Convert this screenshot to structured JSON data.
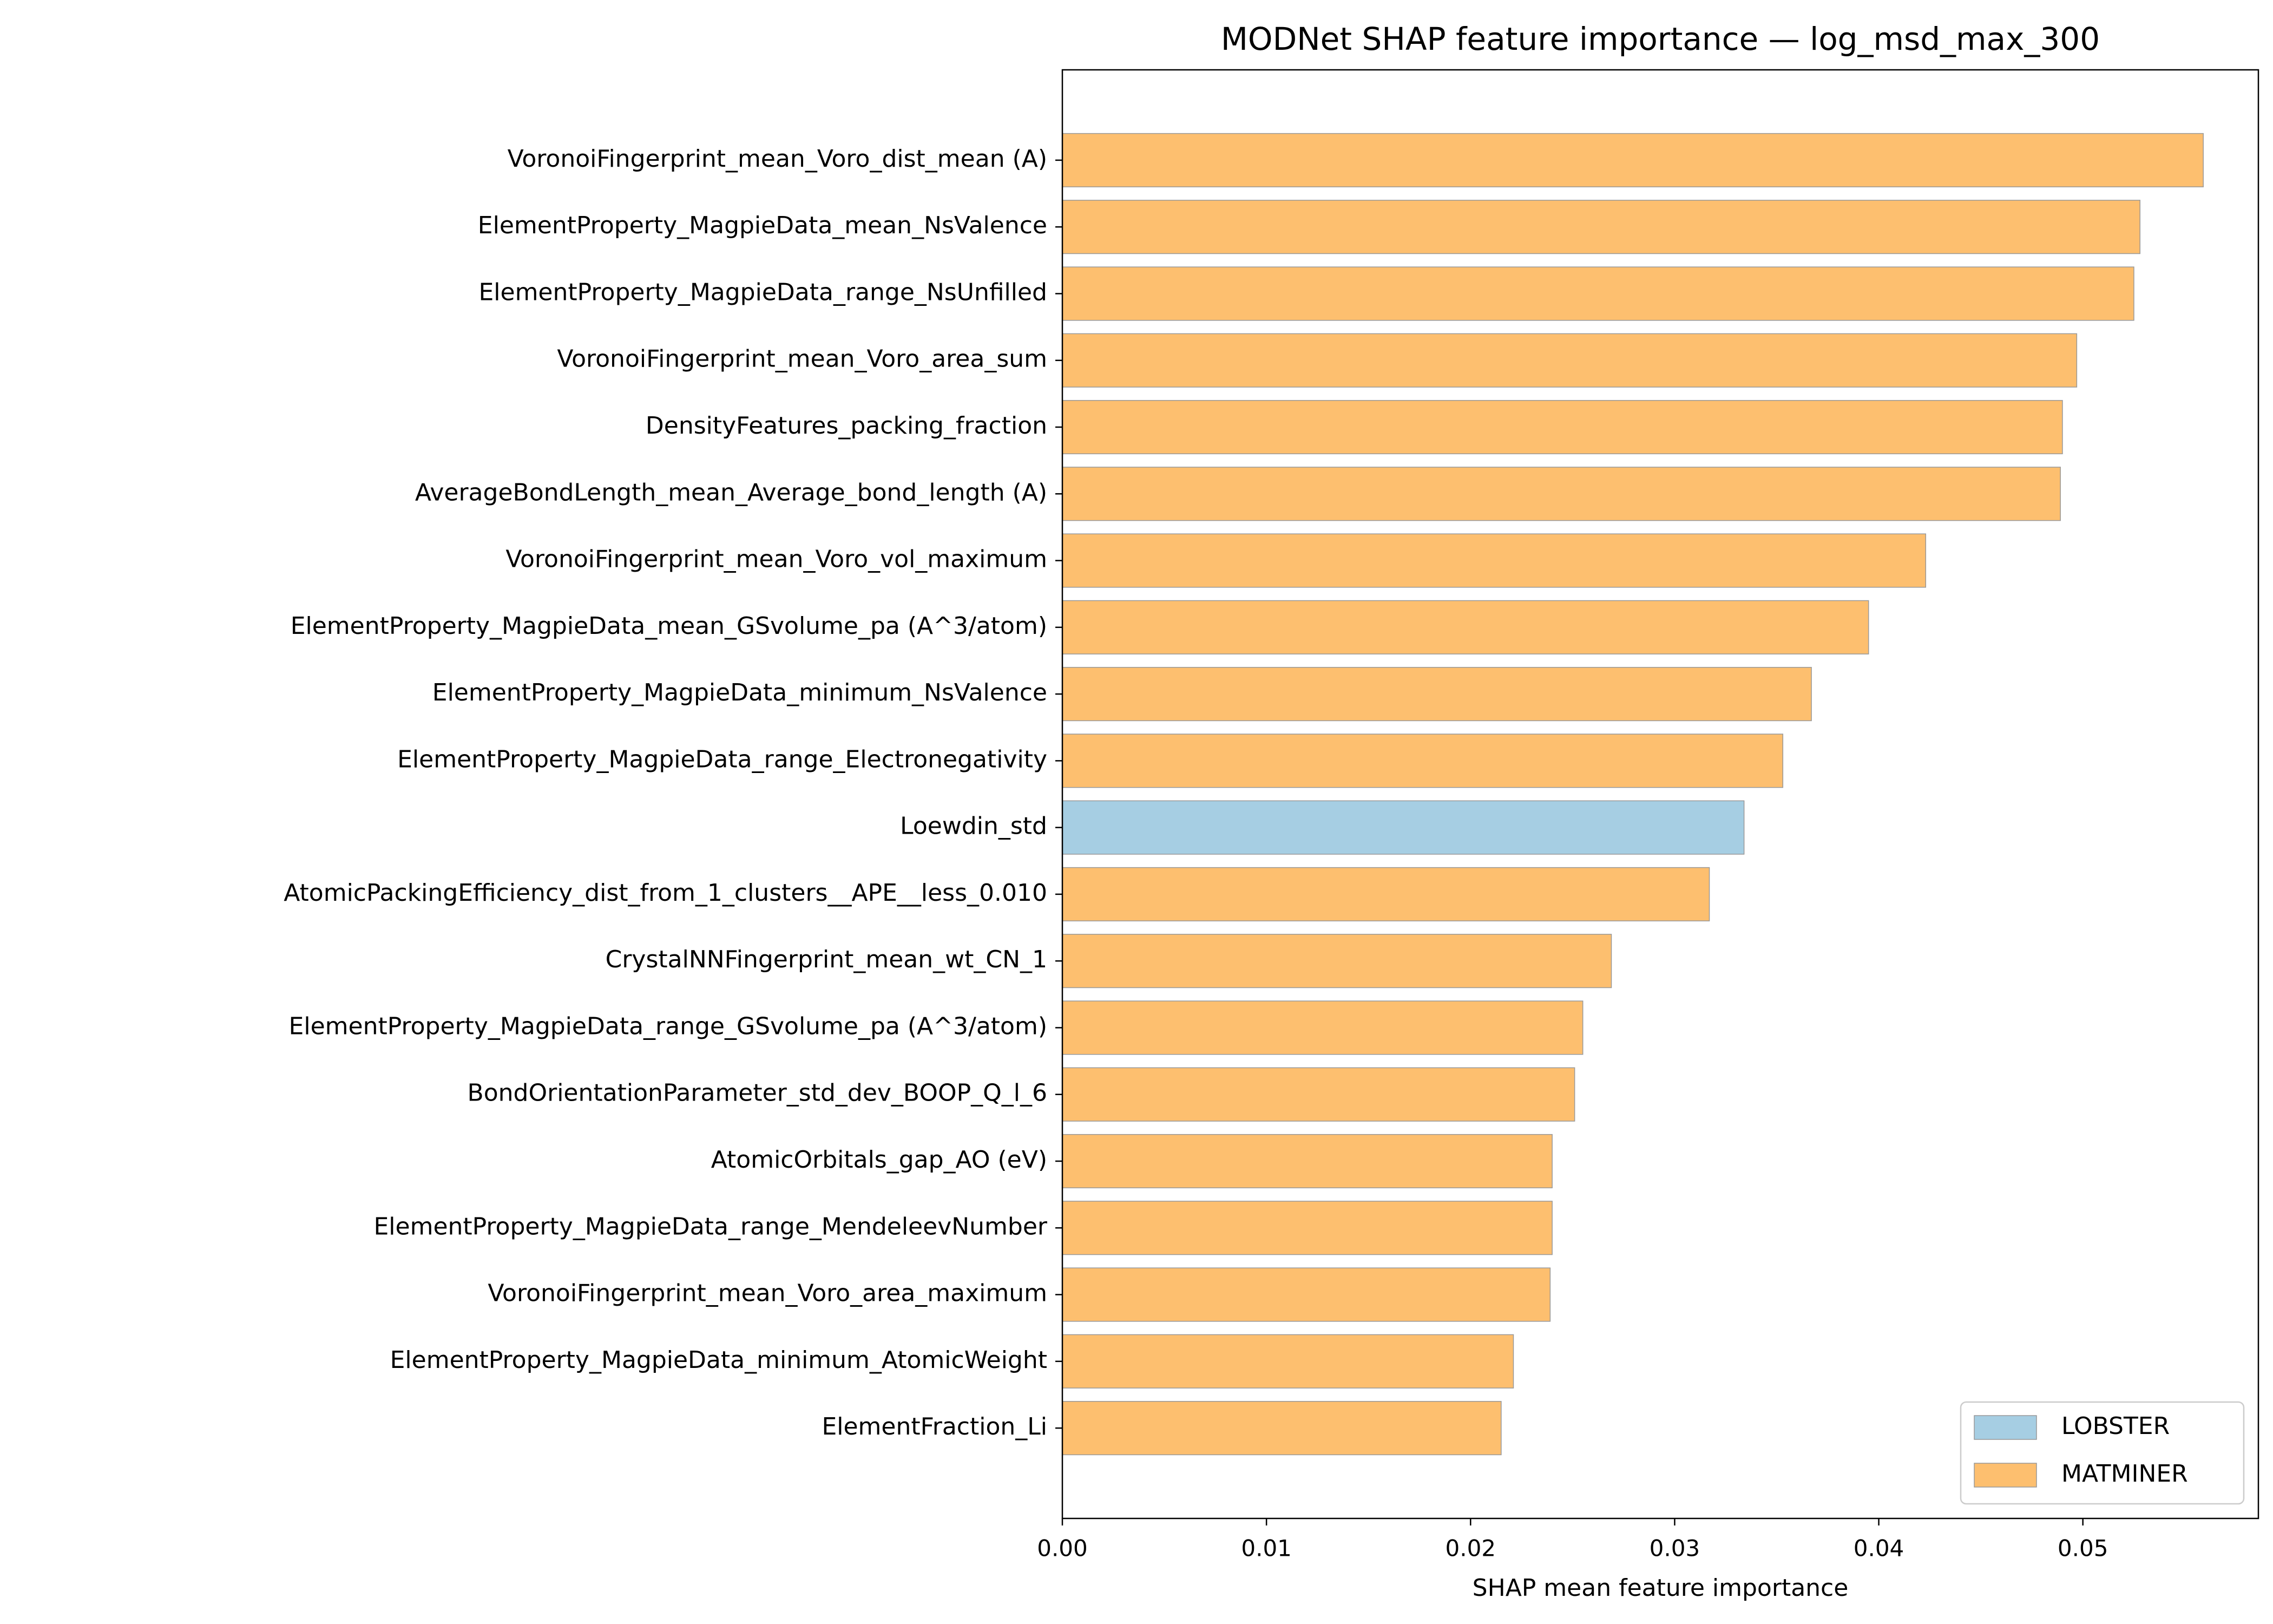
{
  "chart_data": {
    "type": "barh",
    "title": "MODNet SHAP feature importance — log_msd_max_300",
    "x_label": "SHAP mean feature importance",
    "categories": [
      "VoronoiFingerprint_mean_Voro_dist_mean (A)",
      "ElementProperty_MagpieData_mean_NsValence",
      "ElementProperty_MagpieData_range_NsUnfilled",
      "VoronoiFingerprint_mean_Voro_area_sum",
      "DensityFeatures_packing_fraction",
      "AverageBondLength_mean_Average_bond_length (A)",
      "VoronoiFingerprint_mean_Voro_vol_maximum",
      "ElementProperty_MagpieData_mean_GSvolume_pa (A^3/atom)",
      "ElementProperty_MagpieData_minimum_NsValence",
      "ElementProperty_MagpieData_range_Electronegativity",
      "Loewdin_std",
      "AtomicPackingEfficiency_dist_from_1_clusters__APE__less_0.010",
      "CrystalNNFingerprint_mean_wt_CN_1",
      "ElementProperty_MagpieData_range_GSvolume_pa (A^3/atom)",
      "BondOrientationParameter_std_dev_BOOP_Q_l_6",
      "AtomicOrbitals_gap_AO (eV)",
      "ElementProperty_MagpieData_range_MendeleevNumber",
      "VoronoiFingerprint_mean_Voro_area_maximum",
      "ElementProperty_MagpieData_minimum_AtomicWeight",
      "ElementFraction_Li"
    ],
    "series": [
      {
        "name": "LOBSTER",
        "color": "#a6cee3",
        "values": [
          null,
          null,
          null,
          null,
          null,
          null,
          null,
          null,
          null,
          null,
          0.0334,
          null,
          null,
          null,
          null,
          null,
          null,
          null,
          null,
          null
        ]
      },
      {
        "name": "MATMINER",
        "color": "#fdbf6f",
        "values": [
          0.0559,
          0.0528,
          0.0525,
          0.0497,
          0.049,
          0.0489,
          0.0423,
          0.0395,
          0.0367,
          0.0353,
          null,
          0.0317,
          0.0269,
          0.0255,
          0.0251,
          0.024,
          0.024,
          0.0239,
          0.0221,
          0.0215
        ]
      }
    ],
    "xlim": [
      0,
      0.0586
    ],
    "xticks": [
      {
        "value": 0,
        "label": "0.00"
      },
      0.01,
      0.02,
      0.03,
      0.04,
      0.05
    ],
    "legend": "lower right"
  }
}
